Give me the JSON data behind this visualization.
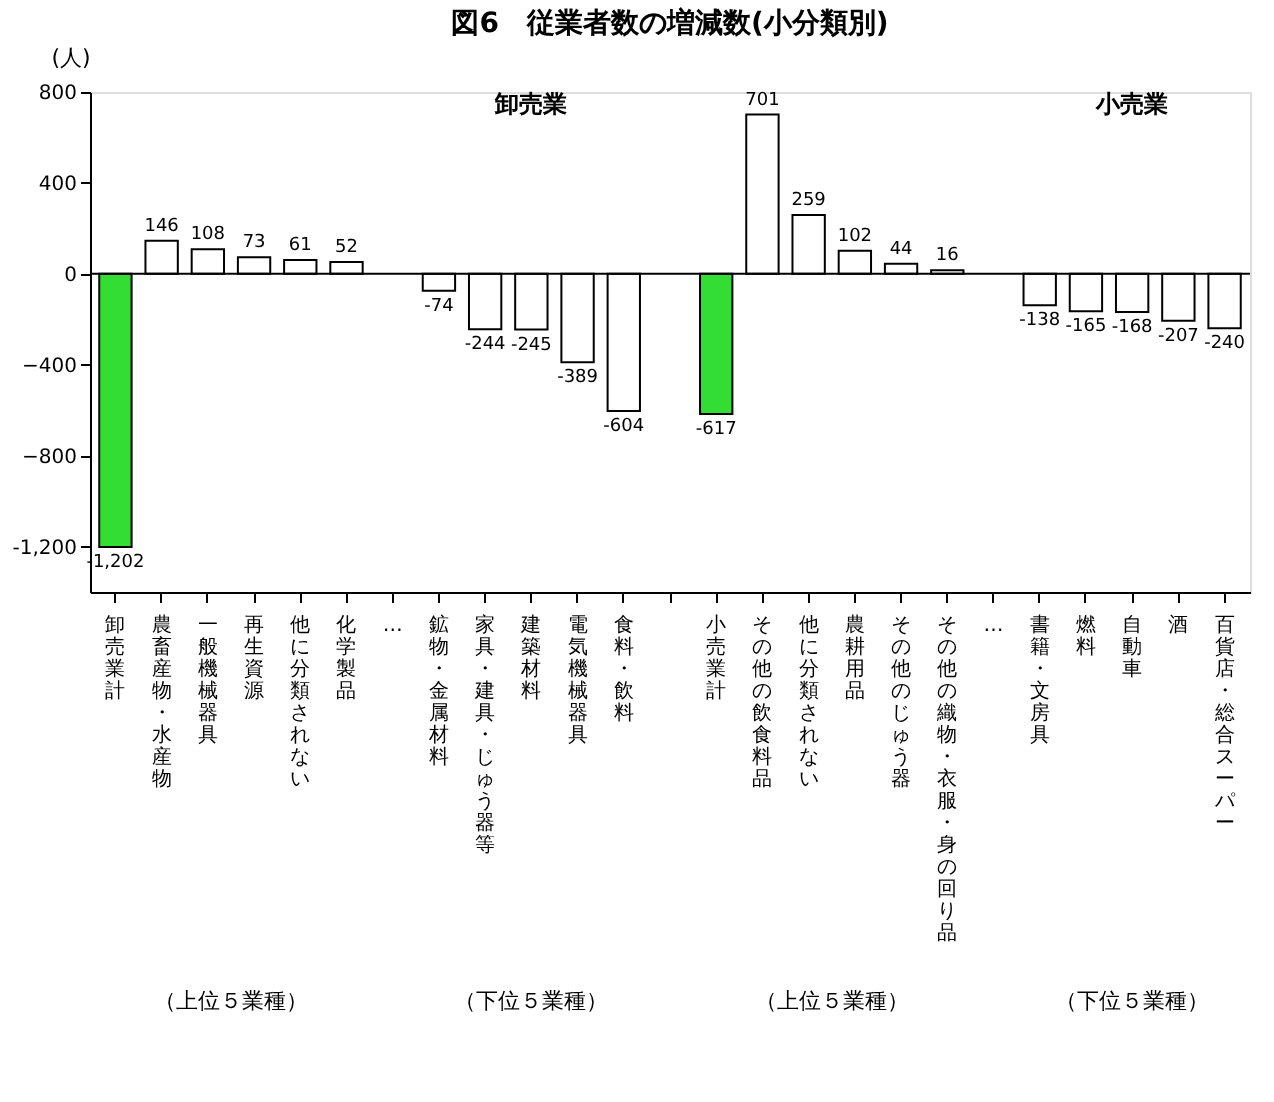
{
  "chart_data": {
    "type": "bar",
    "title": "図6　従業者数の増減数(小分類別)",
    "ylabel": "(人)",
    "categories": [
      "卸売業計",
      "農畜産物・水産物",
      "一般機械器具",
      "再生資源",
      "他に分類されない",
      "化学製品",
      "…",
      "鉱物・金属材料",
      "家具・建具・じゅう器等",
      "建築材料",
      "電気機械器具",
      "食料・飲料",
      null,
      "小売業計",
      "その他の飲食料品",
      "他に分類されない",
      "農耕用品",
      "その他のじゅう器",
      "その他の織物・衣服・身の回り品",
      "…",
      "書籍・文房具",
      "燃料",
      "自動車",
      "酒",
      "百貨店・総合スーパー"
    ],
    "values": [
      -1202,
      146,
      108,
      73,
      61,
      52,
      null,
      -74,
      -244,
      -245,
      -389,
      -604,
      null,
      -617,
      701,
      259,
      102,
      44,
      16,
      null,
      -138,
      -165,
      -168,
      -207,
      -240
    ],
    "colors": [
      "#33dd33",
      "#ffffff",
      "#ffffff",
      "#ffffff",
      "#ffffff",
      "#ffffff",
      "#ffffff",
      "#ffffff",
      "#ffffff",
      "#ffffff",
      "#ffffff",
      "#ffffff",
      "#ffffff",
      "#33dd33",
      "#ffffff",
      "#ffffff",
      "#ffffff",
      "#ffffff",
      "#ffffff",
      "#ffffff",
      "#ffffff",
      "#ffffff",
      "#ffffff",
      "#ffffff",
      "#ffffff"
    ],
    "ylim": [
      -1400,
      800
    ],
    "yticks": [
      800,
      400,
      0,
      -400,
      -800,
      {
        "value": -1200,
        "label": "-1,200"
      }
    ],
    "ref_lines": [
      {
        "axis": "y",
        "value": 0,
        "color": "#000000"
      }
    ],
    "value_labels": [
      "-1,202",
      "146",
      "108",
      "73",
      "61",
      "52",
      null,
      "-74",
      "-244",
      "-245",
      "-389",
      "-604",
      null,
      "-617",
      "701",
      "259",
      "102",
      "44",
      "16",
      null,
      "-138",
      "-165",
      "-168",
      "-207",
      "-240"
    ],
    "grid": false,
    "annotations": [
      "卸売業",
      "小売業",
      "（上位５業種）",
      "（下位５業種）",
      "（上位５業種）",
      "（下位５業種）"
    ]
  }
}
